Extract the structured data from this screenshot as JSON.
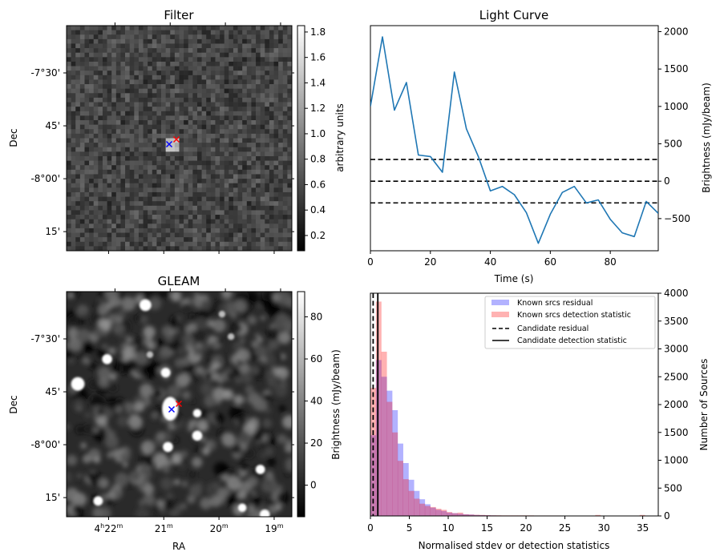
{
  "figure": {
    "panels": [
      "Filter",
      "Light Curve",
      "GLEAM",
      "Histogram"
    ]
  },
  "chart_data": [
    {
      "type": "heatmap",
      "id": "filter",
      "title": "Filter",
      "xlabel": "",
      "ylabel": "Dec",
      "dec_ticks": [
        "-7°30'",
        "45'",
        "-8°00'",
        "15'"
      ],
      "colorbar": {
        "label": "arbitrary units",
        "range": [
          0.08,
          1.85
        ],
        "ticks": [
          "0.2",
          "0.4",
          "0.6",
          "0.8",
          "1.0",
          "1.2",
          "1.4",
          "1.6",
          "1.8"
        ],
        "tick_values": [
          0.2,
          0.4,
          0.6,
          0.8,
          1.0,
          1.2,
          1.4,
          1.6,
          1.8
        ],
        "colormap": "gray"
      },
      "grid_size": 50,
      "markers": [
        {
          "name": "candidate-position",
          "symbol": "x",
          "color": "#0000ff"
        },
        {
          "name": "catalog-position",
          "symbol": "x",
          "color": "#ff0000"
        }
      ]
    },
    {
      "type": "line",
      "id": "lightcurve",
      "title": "Light Curve",
      "xlabel": "Time (s)",
      "ylabel": "Brightness (mJy/beam)",
      "xlim": [
        0,
        96
      ],
      "ylim": [
        -930,
        2080
      ],
      "xticks": [
        0,
        20,
        40,
        60,
        80
      ],
      "yticks": [
        -500,
        0,
        500,
        1000,
        1500,
        2000
      ],
      "ytick_labels": [
        "−500",
        "0",
        "500",
        "1000",
        "1500",
        "2000"
      ],
      "y_axis_side": "right",
      "x": [
        0,
        4,
        8,
        12,
        16,
        20,
        24,
        28,
        32,
        36,
        40,
        44,
        48,
        52,
        56,
        60,
        64,
        68,
        72,
        76,
        80,
        84,
        88,
        92,
        96
      ],
      "series": [
        {
          "name": "light-curve",
          "color": "#1f77b4",
          "values": [
            1000,
            1930,
            950,
            1320,
            350,
            330,
            120,
            1460,
            700,
            330,
            -130,
            -70,
            -180,
            -420,
            -830,
            -440,
            -150,
            -70,
            -290,
            -250,
            -510,
            -690,
            -740,
            -270,
            -430
          ]
        }
      ],
      "hlines": [
        {
          "name": "upper-threshold",
          "y": 290,
          "style": "dashed",
          "color": "#000000"
        },
        {
          "name": "mean-line",
          "y": 0,
          "style": "dashed",
          "color": "#000000"
        },
        {
          "name": "lower-threshold",
          "y": -290,
          "style": "dashed",
          "color": "#000000"
        }
      ]
    },
    {
      "type": "heatmap",
      "id": "gleam",
      "title": "GLEAM",
      "xlabel": "RA",
      "ylabel": "Dec",
      "ra_ticks": [
        {
          "h": "4",
          "m": "22"
        },
        {
          "h": "",
          "m": "21"
        },
        {
          "h": "",
          "m": "20"
        },
        {
          "h": "",
          "m": "19"
        }
      ],
      "dec_ticks": [
        "-7°30'",
        "45'",
        "-8°00'",
        "15'"
      ],
      "colorbar": {
        "label": "Brightness (mJy/beam)",
        "range": [
          -15,
          92
        ],
        "ticks": [
          "0",
          "20",
          "40",
          "60",
          "80"
        ],
        "tick_values": [
          0,
          20,
          40,
          60,
          80
        ],
        "colormap": "gray"
      },
      "sources": [
        {
          "x": 0.35,
          "y": 0.06,
          "r": 0.035
        },
        {
          "x": 0.18,
          "y": 0.3,
          "r": 0.03
        },
        {
          "x": 0.05,
          "y": 0.41,
          "r": 0.04
        },
        {
          "x": 0.44,
          "y": 0.36,
          "r": 0.028
        },
        {
          "x": 0.46,
          "y": 0.52,
          "r": 0.05
        },
        {
          "x": 0.58,
          "y": 0.54,
          "r": 0.025
        },
        {
          "x": 0.58,
          "y": 0.64,
          "r": 0.03
        },
        {
          "x": 0.45,
          "y": 0.69,
          "r": 0.03
        },
        {
          "x": 0.86,
          "y": 0.79,
          "r": 0.028
        },
        {
          "x": 0.14,
          "y": 0.93,
          "r": 0.028
        },
        {
          "x": 0.78,
          "y": 0.96,
          "r": 0.025
        },
        {
          "x": 0.88,
          "y": 0.99,
          "r": 0.03
        },
        {
          "x": 0.73,
          "y": 0.2,
          "r": 0.02
        },
        {
          "x": 0.37,
          "y": 0.28,
          "r": 0.02
        },
        {
          "x": 0.69,
          "y": 0.1,
          "r": 0.02
        }
      ],
      "markers": [
        {
          "name": "candidate-position",
          "symbol": "x",
          "color": "#0000ff"
        },
        {
          "name": "catalog-position",
          "symbol": "x",
          "color": "#ff0000"
        }
      ]
    },
    {
      "type": "bar",
      "id": "histogram",
      "title": "",
      "xlabel": "Normalised stdev or detection statistics",
      "ylabel": "Number of Sources",
      "xlim": [
        0,
        37
      ],
      "ylim": [
        0,
        4000
      ],
      "xticks": [
        0,
        5,
        10,
        15,
        20,
        25,
        30,
        35
      ],
      "yticks": [
        0,
        500,
        1000,
        1500,
        2000,
        2500,
        3000,
        3500,
        4000
      ],
      "y_axis_side": "right",
      "bin_width": 0.7,
      "legend": {
        "position": "top-right",
        "entries": [
          {
            "label": "Known srcs residual",
            "kind": "patch",
            "color": "#0000ff",
            "alpha": 0.3
          },
          {
            "label": "Known srcs detection statistic",
            "kind": "patch",
            "color": "#ff0000",
            "alpha": 0.3
          },
          {
            "label": "Candidate residual",
            "kind": "line",
            "style": "dashed",
            "color": "#000000"
          },
          {
            "label": "Candidate detection statistic",
            "kind": "line",
            "style": "solid",
            "color": "#000000"
          }
        ]
      },
      "series": [
        {
          "name": "Known srcs residual",
          "color": "#0000ff",
          "alpha": 0.3,
          "bin_start": 0.0,
          "values": [
            1450,
            2800,
            2500,
            2250,
            1900,
            1300,
            950,
            650,
            450,
            300,
            210,
            150,
            110,
            90,
            60,
            50,
            40,
            30,
            25,
            18,
            15,
            12,
            10,
            8,
            6,
            5,
            4,
            3,
            3,
            2
          ]
        },
        {
          "name": "Known srcs detection statistic",
          "color": "#ff0000",
          "alpha": 0.3,
          "bin_start": 0.0,
          "values": [
            2300,
            3850,
            2950,
            2050,
            1500,
            990,
            660,
            450,
            310,
            220,
            180,
            160,
            130,
            110,
            70,
            50,
            60,
            30,
            25,
            20,
            18,
            15,
            12,
            12,
            10,
            10,
            10,
            10,
            10,
            10,
            8,
            8,
            8,
            8,
            8
          ]
        },
        {
          "name": "tail-outliers-detection",
          "color": "#ff0000",
          "alpha": 0.3,
          "bins": [
            {
              "x": 28.9,
              "value": 18
            },
            {
              "x": 34.6,
              "value": 18
            }
          ]
        }
      ],
      "vlines": [
        {
          "name": "Candidate residual",
          "x": 0.35,
          "style": "dashed",
          "color": "#000000"
        },
        {
          "name": "Candidate detection statistic",
          "x": 0.95,
          "style": "solid",
          "color": "#000000"
        }
      ]
    }
  ]
}
